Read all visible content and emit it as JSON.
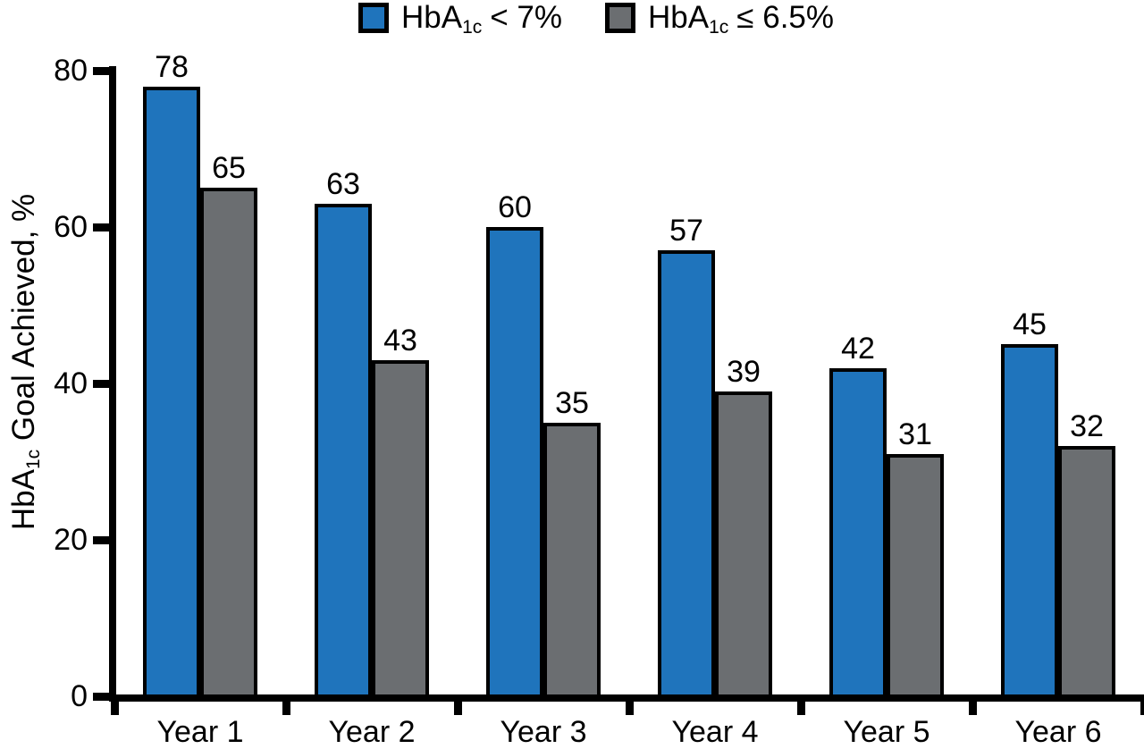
{
  "colors": {
    "series_blue": "#1F74BC",
    "series_gray": "#6B6E71",
    "axis": "#000000",
    "background": "#FFFFFF"
  },
  "legend": {
    "items": [
      {
        "prefix": "HbA",
        "sub": "1c",
        "suffix": "< 7%",
        "color": "#1F74BC"
      },
      {
        "prefix": "HbA",
        "sub": "1c",
        "suffix": "≤ 6.5%",
        "color": "#6B6E71"
      }
    ]
  },
  "y_axis_title": {
    "prefix": "HbA",
    "sub": "1c",
    "suffix": " Goal Achieved, %"
  },
  "chart_data": {
    "type": "bar",
    "categories": [
      "Year 1",
      "Year 2",
      "Year 3",
      "Year 4",
      "Year 5",
      "Year 6"
    ],
    "series": [
      {
        "name": "HbA1c < 7%",
        "color": "#1F74BC",
        "values": [
          78,
          63,
          60,
          57,
          42,
          45
        ]
      },
      {
        "name": "HbA1c ≤ 6.5%",
        "color": "#6B6E71",
        "values": [
          65,
          43,
          35,
          39,
          31,
          32
        ]
      }
    ],
    "title": "",
    "xlabel": "",
    "ylabel": "HbA1c Goal Achieved, %",
    "ylim": [
      0,
      80
    ],
    "yticks": [
      0,
      20,
      40,
      60,
      80
    ],
    "grid": false,
    "legend_position": "top",
    "bar_labels_shown": true
  }
}
